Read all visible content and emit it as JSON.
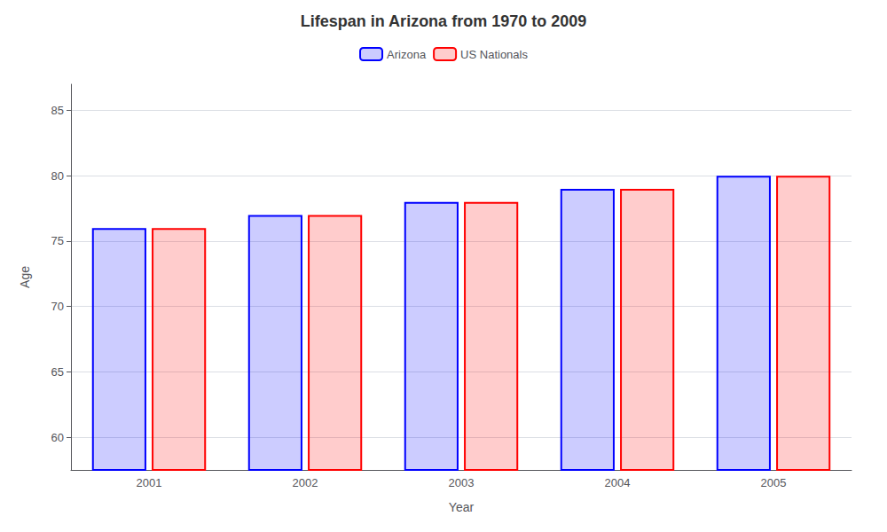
{
  "chart_data": {
    "type": "bar",
    "title": "Lifespan in Arizona from 1970 to 2009",
    "x_label": "Year",
    "y_label": "Age",
    "categories": [
      "2001",
      "2002",
      "2003",
      "2004",
      "2005"
    ],
    "series": [
      {
        "name": "Arizona",
        "color": "#0000ff",
        "values": [
          76,
          77,
          78,
          79,
          80
        ]
      },
      {
        "name": "US Nationals",
        "color": "#ff0000",
        "values": [
          76,
          77,
          78,
          79,
          80
        ]
      }
    ],
    "ylim": [
      57.5,
      87
    ],
    "yticks": [
      60,
      65,
      70,
      75,
      80,
      85
    ],
    "grid": true,
    "legend": "top"
  }
}
